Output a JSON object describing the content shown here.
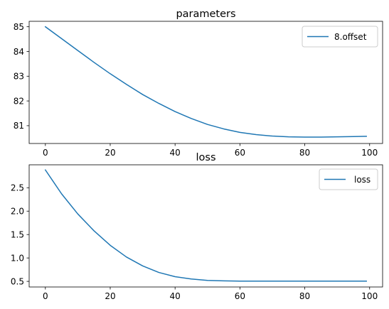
{
  "chart_data": [
    {
      "type": "line",
      "title": "parameters",
      "xlabel": "",
      "ylabel": "",
      "xlim": [
        -5,
        104
      ],
      "ylim": [
        80.28,
        85.22
      ],
      "xticks": [
        "0",
        "20",
        "40",
        "60",
        "80",
        "100"
      ],
      "yticks": [
        "81",
        "82",
        "83",
        "84",
        "85"
      ],
      "grid": false,
      "legend_position": "upper right",
      "series": [
        {
          "name": "8.offset",
          "color": "#1f77b4",
          "x": [
            0,
            5,
            10,
            15,
            20,
            25,
            30,
            35,
            40,
            45,
            50,
            55,
            60,
            65,
            70,
            75,
            80,
            85,
            90,
            95,
            99
          ],
          "values": [
            85.0,
            84.52,
            84.04,
            83.56,
            83.1,
            82.67,
            82.26,
            81.9,
            81.57,
            81.29,
            81.05,
            80.87,
            80.73,
            80.64,
            80.58,
            80.55,
            80.54,
            80.54,
            80.55,
            80.56,
            80.57
          ]
        }
      ]
    },
    {
      "type": "line",
      "title": "loss",
      "xlabel": "",
      "ylabel": "",
      "xlim": [
        -5,
        104
      ],
      "ylim": [
        0.38,
        2.99
      ],
      "xticks": [
        "0",
        "20",
        "40",
        "60",
        "80",
        "100"
      ],
      "yticks": [
        "0.5",
        "1.0",
        "1.5",
        "2.0",
        "2.5"
      ],
      "grid": false,
      "legend_position": "upper right",
      "series": [
        {
          "name": "loss",
          "color": "#1f77b4",
          "x": [
            0,
            5,
            10,
            15,
            20,
            25,
            30,
            35,
            40,
            45,
            50,
            55,
            60,
            65,
            70,
            75,
            80,
            85,
            90,
            95,
            99
          ],
          "values": [
            2.88,
            2.37,
            1.94,
            1.58,
            1.27,
            1.02,
            0.83,
            0.69,
            0.6,
            0.55,
            0.52,
            0.51,
            0.505,
            0.505,
            0.505,
            0.505,
            0.505,
            0.505,
            0.505,
            0.505,
            0.505
          ]
        }
      ]
    }
  ]
}
